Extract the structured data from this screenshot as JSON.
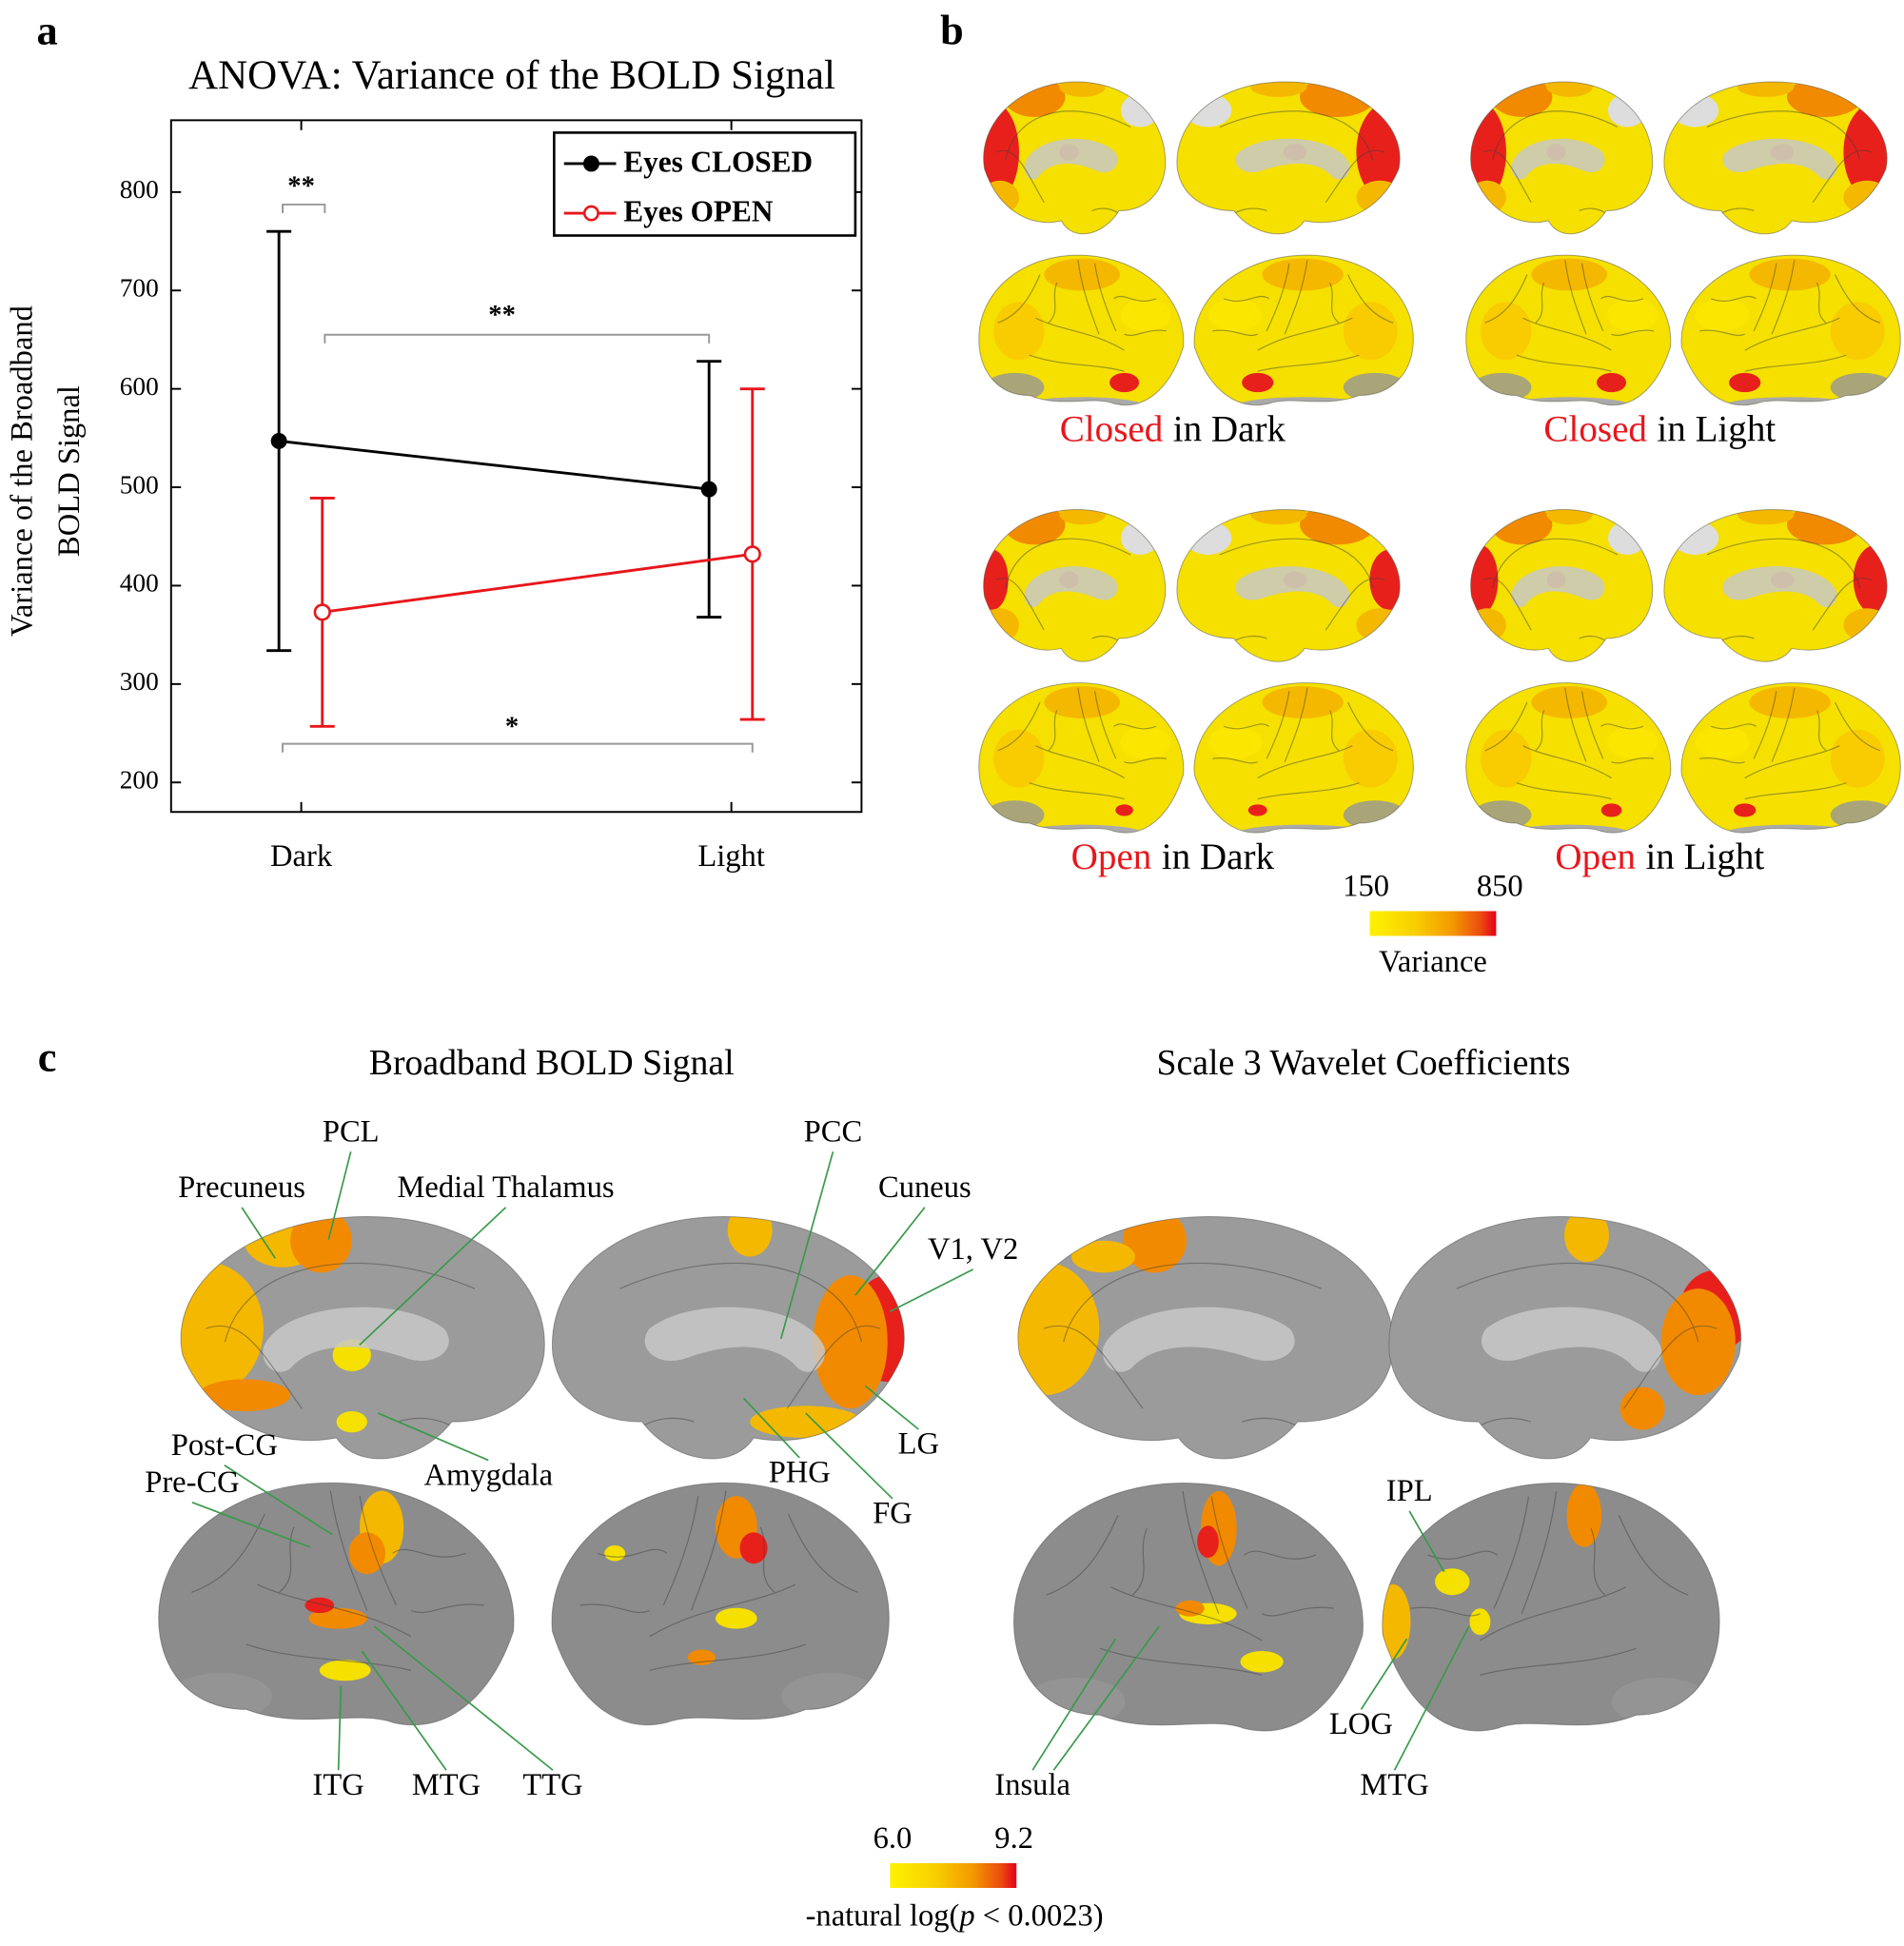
{
  "panel_labels": [
    "a",
    "b",
    "c"
  ],
  "chart_data": {
    "type": "line",
    "title": "ANOVA: Variance of the BOLD Signal",
    "y_label": [
      "Variance of the Broadband",
      "BOLD Signal"
    ],
    "categories": [
      "Dark",
      "Light"
    ],
    "series": [
      {
        "name": "Eyes CLOSED",
        "color": "#000000",
        "filled": true,
        "values": [
          547,
          498
        ],
        "errors": [
          213,
          130
        ]
      },
      {
        "name": "Eyes OPEN",
        "color": "#e8161b",
        "filled": false,
        "values": [
          373,
          432
        ],
        "errors": [
          116,
          168
        ]
      }
    ],
    "ylim": [
      170,
      873
    ],
    "yticks": [
      200,
      300,
      400,
      500,
      600,
      700,
      800
    ],
    "legend": "upper right",
    "annotations": [
      "**",
      "**",
      "*"
    ]
  },
  "panel_b": {
    "maps": [
      {
        "highlight": "Closed",
        "rest": "in Dark"
      },
      {
        "highlight": "Closed",
        "rest": "in Light"
      },
      {
        "highlight": "Open",
        "rest": "in Dark"
      },
      {
        "highlight": "Open",
        "rest": "in Light"
      }
    ],
    "colorbar": {
      "min": "150",
      "max": "850",
      "label": "Variance"
    }
  },
  "panel_c": {
    "titles": [
      "Broadband BOLD Signal",
      "Scale 3 Wavelet Coefficients"
    ],
    "labels": [
      "PCL",
      "Precuneus",
      "Medial Thalamus",
      "PCC",
      "Cuneus",
      "V1, V2",
      "Post-CG",
      "Pre-CG",
      "Amygdala",
      "PHG",
      "LG",
      "FG",
      "ITG",
      "MTG",
      "TTG",
      "IPL",
      "Insula",
      "LOG",
      "MTG"
    ],
    "colorbar": {
      "min": "6.0",
      "max": "9.2",
      "label_parts": [
        "-natural log(",
        "p",
        " < 0.0023)"
      ]
    }
  }
}
